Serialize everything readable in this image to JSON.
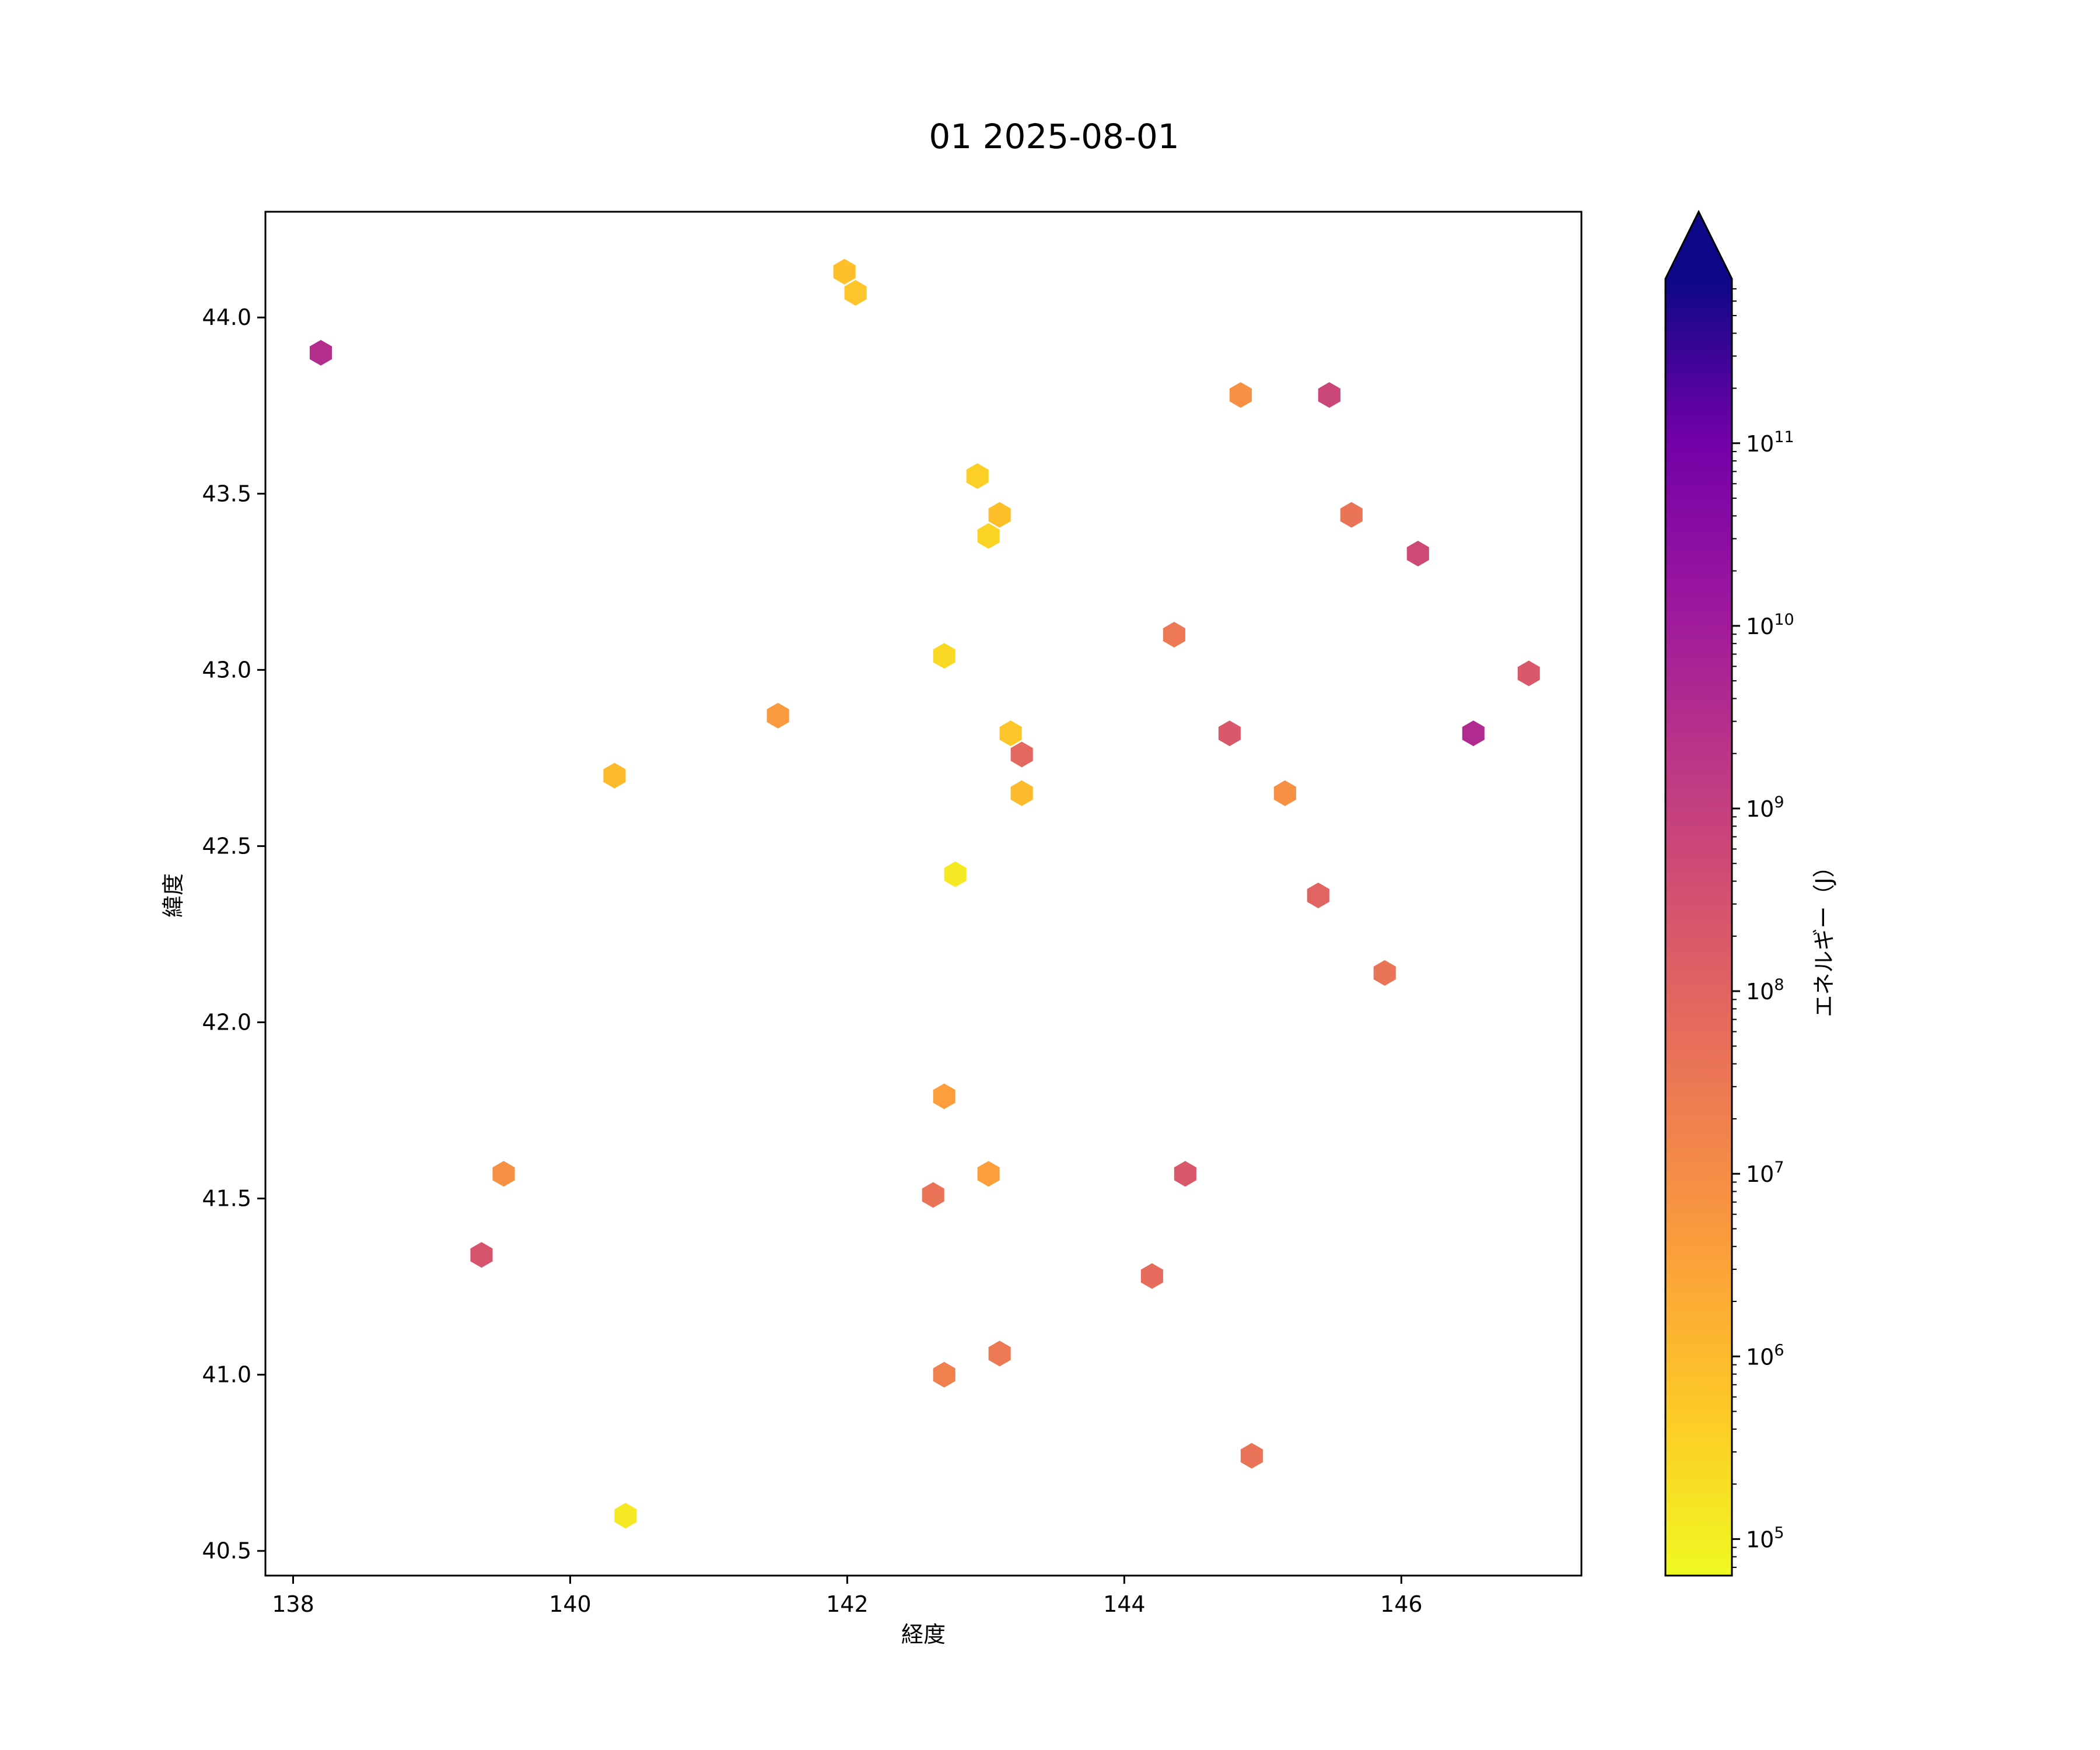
{
  "chart_data": {
    "type": "scatter",
    "marker": "hexagon",
    "title": "01 2025-08-01",
    "xlabel": "経度",
    "ylabel": "緯度",
    "xlim": [
      137.8,
      147.3
    ],
    "ylim": [
      40.43,
      44.3
    ],
    "xticks": [
      138,
      140,
      142,
      144,
      146
    ],
    "xtick_labels": [
      "138",
      "140",
      "142",
      "144",
      "146"
    ],
    "yticks": [
      40.5,
      41.0,
      41.5,
      42.0,
      42.5,
      43.0,
      43.5,
      44.0
    ],
    "ytick_labels": [
      "40.5",
      "41.0",
      "41.5",
      "42.0",
      "42.5",
      "43.0",
      "43.5",
      "44.0"
    ],
    "grid": false,
    "colorbar": {
      "label": "エネルギー（J）",
      "scale": "log",
      "colormap": "plasma_r",
      "log10_range": [
        4.8,
        11.9
      ],
      "extend": "max",
      "ticks": [
        {
          "exp": 5,
          "base": "10",
          "sup": "5"
        },
        {
          "exp": 6,
          "base": "10",
          "sup": "6"
        },
        {
          "exp": 7,
          "base": "10",
          "sup": "7"
        },
        {
          "exp": 8,
          "base": "10",
          "sup": "8"
        },
        {
          "exp": 9,
          "base": "10",
          "sup": "9"
        },
        {
          "exp": 10,
          "base": "10",
          "sup": "10"
        },
        {
          "exp": 11,
          "base": "10",
          "sup": "11"
        }
      ]
    },
    "points": [
      {
        "x": 138.2,
        "y": 43.9,
        "log10_energy": 9.5
      },
      {
        "x": 141.98,
        "y": 44.13,
        "log10_energy": 5.9
      },
      {
        "x": 142.06,
        "y": 44.07,
        "log10_energy": 5.8
      },
      {
        "x": 144.84,
        "y": 43.78,
        "log10_energy": 6.9
      },
      {
        "x": 145.48,
        "y": 43.78,
        "log10_energy": 8.8
      },
      {
        "x": 142.94,
        "y": 43.55,
        "log10_energy": 5.6
      },
      {
        "x": 143.1,
        "y": 43.44,
        "log10_energy": 5.9
      },
      {
        "x": 143.02,
        "y": 43.38,
        "log10_energy": 5.5
      },
      {
        "x": 145.64,
        "y": 43.44,
        "log10_energy": 7.6
      },
      {
        "x": 146.12,
        "y": 43.33,
        "log10_energy": 8.7
      },
      {
        "x": 144.36,
        "y": 43.1,
        "log10_energy": 7.5
      },
      {
        "x": 142.7,
        "y": 43.04,
        "log10_energy": 5.4
      },
      {
        "x": 146.92,
        "y": 42.99,
        "log10_energy": 8.3
      },
      {
        "x": 141.5,
        "y": 42.87,
        "log10_energy": 6.7
      },
      {
        "x": 143.18,
        "y": 42.82,
        "log10_energy": 5.8
      },
      {
        "x": 143.26,
        "y": 42.76,
        "log10_energy": 7.9
      },
      {
        "x": 144.76,
        "y": 42.82,
        "log10_energy": 8.3
      },
      {
        "x": 146.52,
        "y": 42.82,
        "log10_energy": 9.6
      },
      {
        "x": 140.32,
        "y": 42.7,
        "log10_energy": 6.0
      },
      {
        "x": 143.26,
        "y": 42.65,
        "log10_energy": 6.0
      },
      {
        "x": 145.16,
        "y": 42.65,
        "log10_energy": 6.9
      },
      {
        "x": 142.78,
        "y": 42.42,
        "log10_energy": 5.1
      },
      {
        "x": 145.4,
        "y": 42.36,
        "log10_energy": 8.0
      },
      {
        "x": 145.88,
        "y": 42.14,
        "log10_energy": 7.6
      },
      {
        "x": 142.7,
        "y": 41.79,
        "log10_energy": 6.6
      },
      {
        "x": 139.52,
        "y": 41.57,
        "log10_energy": 6.9
      },
      {
        "x": 143.02,
        "y": 41.57,
        "log10_energy": 6.6
      },
      {
        "x": 144.44,
        "y": 41.57,
        "log10_energy": 8.3
      },
      {
        "x": 142.62,
        "y": 41.51,
        "log10_energy": 7.6
      },
      {
        "x": 139.36,
        "y": 41.34,
        "log10_energy": 8.4
      },
      {
        "x": 144.2,
        "y": 41.28,
        "log10_energy": 7.8
      },
      {
        "x": 143.1,
        "y": 41.06,
        "log10_energy": 7.5
      },
      {
        "x": 142.7,
        "y": 41.0,
        "log10_energy": 7.3
      },
      {
        "x": 144.92,
        "y": 40.77,
        "log10_energy": 7.6
      },
      {
        "x": 140.4,
        "y": 40.6,
        "log10_energy": 5.1
      }
    ]
  }
}
